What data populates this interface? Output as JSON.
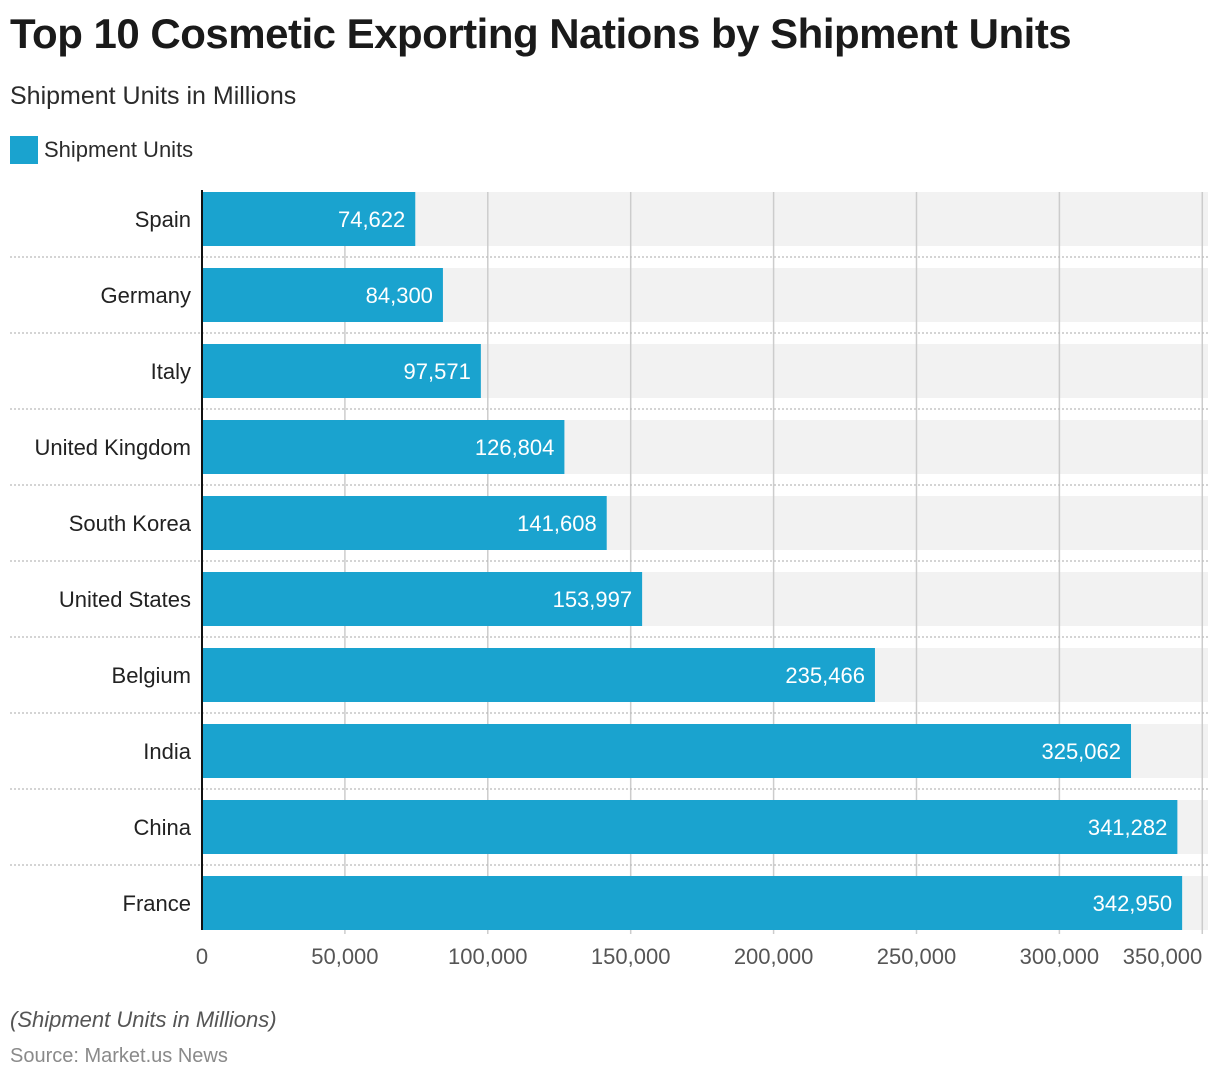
{
  "header": {
    "title": "Top 10 Cosmetic Exporting Nations by Shipment Units",
    "subtitle": "Shipment Units in Millions"
  },
  "legend": {
    "label": "Shipment Units",
    "color": "#1aa3cf"
  },
  "footer": {
    "note": "(Shipment Units in Millions)",
    "source": "Source: Market.us News"
  },
  "chart_data": {
    "type": "bar",
    "orientation": "horizontal",
    "title": "Top 10 Cosmetic Exporting Nations by Shipment Units",
    "subtitle": "Shipment Units in Millions",
    "xlabel": "",
    "ylabel": "",
    "categories": [
      "Spain",
      "Germany",
      "Italy",
      "United Kingdom",
      "South Korea",
      "United States",
      "Belgium",
      "India",
      "China",
      "France"
    ],
    "series": [
      {
        "name": "Shipment Units",
        "values": [
          74622,
          84300,
          97571,
          126804,
          141608,
          153997,
          235466,
          325062,
          341282,
          342950
        ]
      }
    ],
    "value_labels": [
      "74,622",
      "84,300",
      "97,571",
      "126,804",
      "141,608",
      "153,997",
      "235,466",
      "325,062",
      "341,282",
      "342,950"
    ],
    "xlim": [
      0,
      350000
    ],
    "x_ticks": [
      0,
      50000,
      100000,
      150000,
      200000,
      250000,
      300000,
      350000
    ],
    "x_tick_labels": [
      "0",
      "50,000",
      "100,000",
      "150,000",
      "200,000",
      "250,000",
      "300,000",
      "350,000"
    ],
    "grid": true,
    "legend_position": "top-left",
    "colors": {
      "bar": "#1aa3cf",
      "track": "#f2f2f2",
      "grid": "#cccccc",
      "label_inside": "#ffffff"
    }
  }
}
